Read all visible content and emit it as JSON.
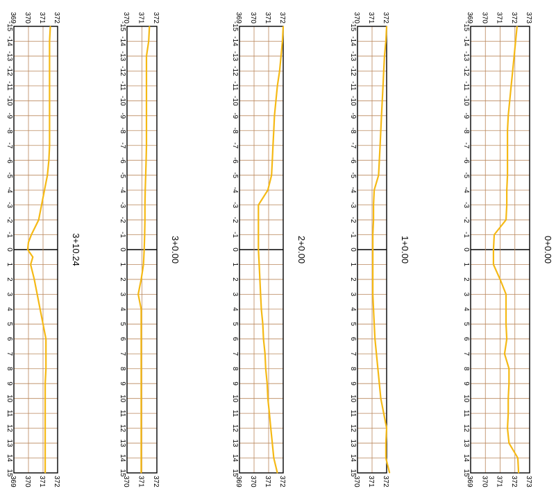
{
  "chart_data": [
    {
      "type": "line",
      "title": "0+0.00",
      "x": [
        -15,
        -14,
        -13,
        -12,
        -11,
        -10,
        -9,
        -8,
        -7,
        -6,
        -5,
        -4,
        -3,
        -2,
        -1,
        0,
        1,
        2,
        3,
        4,
        5,
        6,
        7,
        8,
        9,
        10,
        11,
        12,
        13,
        14,
        15
      ],
      "xlim": [
        -15,
        15
      ],
      "ylim": [
        369,
        373
      ],
      "yticks": [
        369,
        370,
        371,
        372,
        373
      ],
      "series": [
        {
          "values": [
            372.15,
            372.05,
            371.95,
            371.85,
            371.75,
            371.65,
            371.55,
            371.5,
            371.5,
            371.5,
            371.5,
            371.45,
            371.45,
            371.4,
            370.6,
            370.55,
            370.55,
            371.0,
            371.4,
            371.4,
            371.4,
            371.45,
            371.3,
            371.6,
            371.6,
            371.55,
            371.55,
            371.5,
            371.6,
            372.2,
            372.25
          ]
        }
      ],
      "series_color": "#f5b915",
      "grid": true
    },
    {
      "type": "line",
      "title": "1+0.00",
      "x": [
        -15,
        -14,
        -13,
        -12,
        -11,
        -10,
        -9,
        -8,
        -7,
        -6,
        -5,
        -4,
        -3,
        -2,
        -1,
        0,
        1,
        2,
        3,
        4,
        5,
        6,
        7,
        8,
        9,
        10,
        11,
        12,
        13,
        14,
        15
      ],
      "xlim": [
        -15,
        15
      ],
      "ylim": [
        370,
        372
      ],
      "yticks": [
        370,
        371,
        372
      ],
      "series": [
        {
          "values": [
            372.0,
            371.95,
            371.85,
            371.8,
            371.75,
            371.7,
            371.65,
            371.6,
            371.55,
            371.5,
            371.45,
            371.15,
            371.1,
            371.1,
            371.05,
            371.05,
            371.05,
            371.05,
            371.05,
            371.1,
            371.15,
            371.2,
            371.3,
            371.4,
            371.5,
            371.6,
            371.8,
            372.0,
            371.95,
            371.95,
            372.2
          ]
        }
      ],
      "series_color": "#f5b915",
      "grid": true
    },
    {
      "type": "line",
      "title": "2+0.00",
      "x": [
        -15,
        -14,
        -13,
        -12,
        -11,
        -10,
        -9,
        -8,
        -7,
        -6,
        -5,
        -4,
        -3,
        -2,
        -1,
        0,
        1,
        2,
        3,
        4,
        5,
        6,
        7,
        8,
        9,
        10,
        11,
        12,
        13,
        14,
        15
      ],
      "xlim": [
        -15,
        15
      ],
      "ylim": [
        369,
        372
      ],
      "yticks": [
        369,
        370,
        371,
        372
      ],
      "series": [
        {
          "values": [
            372.0,
            371.95,
            371.85,
            371.75,
            371.6,
            371.5,
            371.4,
            371.35,
            371.3,
            371.25,
            371.2,
            370.95,
            370.3,
            370.3,
            370.3,
            370.3,
            370.35,
            370.4,
            370.45,
            370.5,
            370.6,
            370.65,
            370.75,
            370.8,
            370.9,
            370.95,
            371.05,
            371.15,
            371.25,
            371.35,
            371.6
          ]
        }
      ],
      "series_color": "#f5b915",
      "grid": true
    },
    {
      "type": "line",
      "title": "3+0.00",
      "x": [
        -15,
        -14,
        -13,
        -12,
        -11,
        -10,
        -9,
        -8,
        -7,
        -6,
        -5,
        -4,
        -3,
        -2,
        -1,
        0,
        1,
        2,
        3,
        4,
        5,
        6,
        7,
        8,
        9,
        10,
        11,
        12,
        13,
        14,
        15
      ],
      "xlim": [
        -15,
        15
      ],
      "ylim": [
        370,
        372
      ],
      "yticks": [
        370,
        371,
        372
      ],
      "series": [
        {
          "values": [
            371.5,
            371.45,
            371.3,
            371.3,
            371.3,
            371.3,
            371.3,
            371.3,
            371.3,
            371.28,
            371.25,
            371.22,
            371.2,
            371.2,
            371.18,
            371.15,
            371.1,
            370.95,
            370.75,
            370.95,
            370.95,
            370.95,
            370.95,
            370.95,
            370.95,
            370.95,
            370.95,
            370.95,
            370.95,
            370.95,
            370.95
          ]
        }
      ],
      "series_color": "#f5b915",
      "grid": true
    },
    {
      "type": "line",
      "title": "3+10.24",
      "x": [
        -15,
        -14,
        -13,
        -12,
        -11,
        -10,
        -9,
        -8,
        -7,
        -6,
        -5,
        -4,
        -3,
        -2,
        -1,
        -0.5,
        0,
        0.5,
        1,
        2,
        3,
        4,
        5,
        6,
        7,
        8,
        9,
        10,
        11,
        12,
        13,
        14,
        15
      ],
      "xlim": [
        -15,
        15
      ],
      "ylim": [
        369,
        372
      ],
      "yticks": [
        369,
        370,
        371,
        372
      ],
      "series": [
        {
          "values": [
            371.5,
            371.45,
            371.45,
            371.45,
            371.45,
            371.45,
            371.45,
            371.45,
            371.45,
            371.4,
            371.3,
            371.1,
            370.9,
            370.7,
            370.2,
            370.0,
            369.95,
            370.3,
            370.15,
            370.4,
            370.6,
            370.8,
            371.0,
            371.2,
            371.2,
            371.2,
            371.15,
            371.15,
            371.15,
            371.15,
            371.15,
            371.15,
            371.15
          ]
        }
      ],
      "series_color": "#f5b915",
      "grid": true
    }
  ]
}
